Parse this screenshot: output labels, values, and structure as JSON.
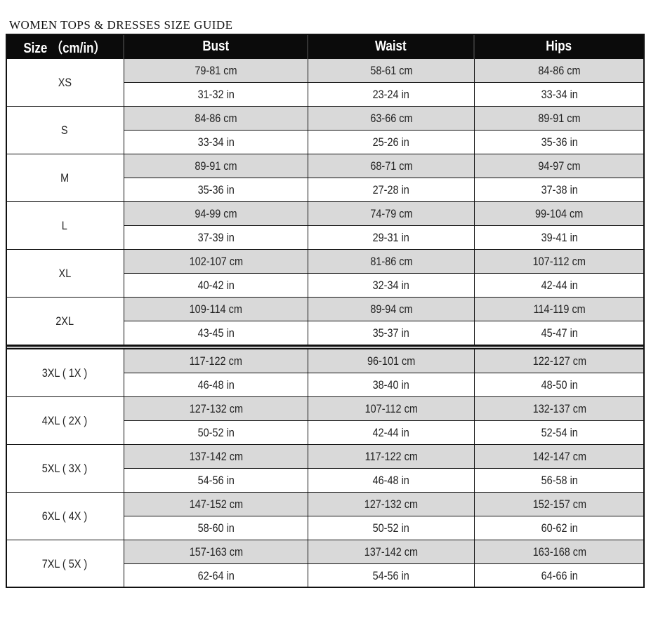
{
  "title": "WOMEN TOPS & DRESSES SIZE GUIDE",
  "headers": [
    "Size （cm/in）",
    "Bust",
    "Waist",
    "Hips"
  ],
  "colors": {
    "header_bg": "#0b0b0b",
    "cm_row_bg": "#d9d9d9"
  },
  "rows": [
    {
      "size": "XS",
      "cm": [
        "79-81 cm",
        "58-61 cm",
        "84-86 cm"
      ],
      "in": [
        "31-32 in",
        "23-24 in",
        "33-34 in"
      ]
    },
    {
      "size": "S",
      "cm": [
        "84-86 cm",
        "63-66 cm",
        "89-91 cm"
      ],
      "in": [
        "33-34 in",
        "25-26 in",
        "35-36 in"
      ]
    },
    {
      "size": "M",
      "cm": [
        "89-91 cm",
        "68-71 cm",
        "94-97 cm"
      ],
      "in": [
        "35-36 in",
        "27-28 in",
        "37-38 in"
      ]
    },
    {
      "size": "L",
      "cm": [
        "94-99 cm",
        "74-79 cm",
        "99-104 cm"
      ],
      "in": [
        "37-39 in",
        "29-31 in",
        "39-41 in"
      ]
    },
    {
      "size": "XL",
      "cm": [
        "102-107 cm",
        "81-86 cm",
        "107-112 cm"
      ],
      "in": [
        "40-42 in",
        "32-34 in",
        "42-44 in"
      ]
    },
    {
      "size": "2XL",
      "cm": [
        "109-114 cm",
        "89-94 cm",
        "114-119 cm"
      ],
      "in": [
        "43-45 in",
        "35-37 in",
        "45-47 in"
      ]
    },
    {
      "size": "3XL ( 1X )",
      "cm": [
        "117-122 cm",
        "96-101 cm",
        "122-127 cm"
      ],
      "in": [
        "46-48 in",
        "38-40 in",
        "48-50 in"
      ]
    },
    {
      "size": "4XL ( 2X )",
      "cm": [
        "127-132 cm",
        "107-112 cm",
        "132-137 cm"
      ],
      "in": [
        "50-52 in",
        "42-44 in",
        "52-54 in"
      ]
    },
    {
      "size": "5XL ( 3X )",
      "cm": [
        "137-142 cm",
        "117-122 cm",
        "142-147 cm"
      ],
      "in": [
        "54-56 in",
        "46-48 in",
        "56-58 in"
      ]
    },
    {
      "size": "6XL ( 4X )",
      "cm": [
        "147-152 cm",
        "127-132 cm",
        "152-157 cm"
      ],
      "in": [
        "58-60 in",
        "50-52 in",
        "60-62 in"
      ]
    },
    {
      "size": "7XL ( 5X )",
      "cm": [
        "157-163 cm",
        "137-142 cm",
        "163-168 cm"
      ],
      "in": [
        "62-64 in",
        "54-56 in",
        "64-66 in"
      ]
    }
  ]
}
